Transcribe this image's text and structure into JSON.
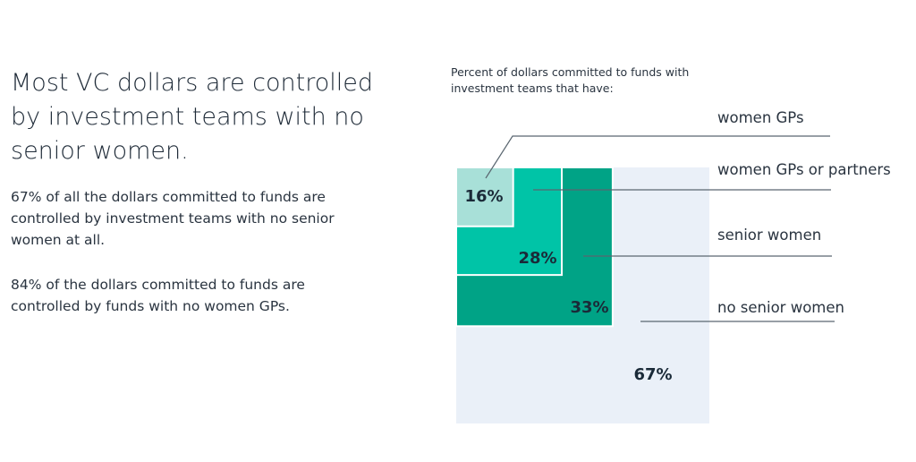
{
  "headline": "Most VC dollars are controlled by investment teams with no senior women.",
  "paragraphs": [
    "67% of all the dollars committed to funds are controlled by investment teams with no senior women at all.",
    "84% of the dollars committed to funds are controlled by funds with no women GPs."
  ],
  "chart_data": {
    "type": "area",
    "title": "Percent of dollars committed to funds with investment teams that have:",
    "categories": [
      "women GPs",
      "women GPs or partners",
      "senior women",
      "no senior women"
    ],
    "values": [
      16,
      28,
      33,
      67
    ],
    "value_labels": [
      "16%",
      "28%",
      "33%",
      "67%"
    ],
    "colors": [
      "#a8e0d8",
      "#00c4a7",
      "#00a386",
      "#eaf0f8"
    ],
    "leader_line_color": "#5a6670"
  }
}
